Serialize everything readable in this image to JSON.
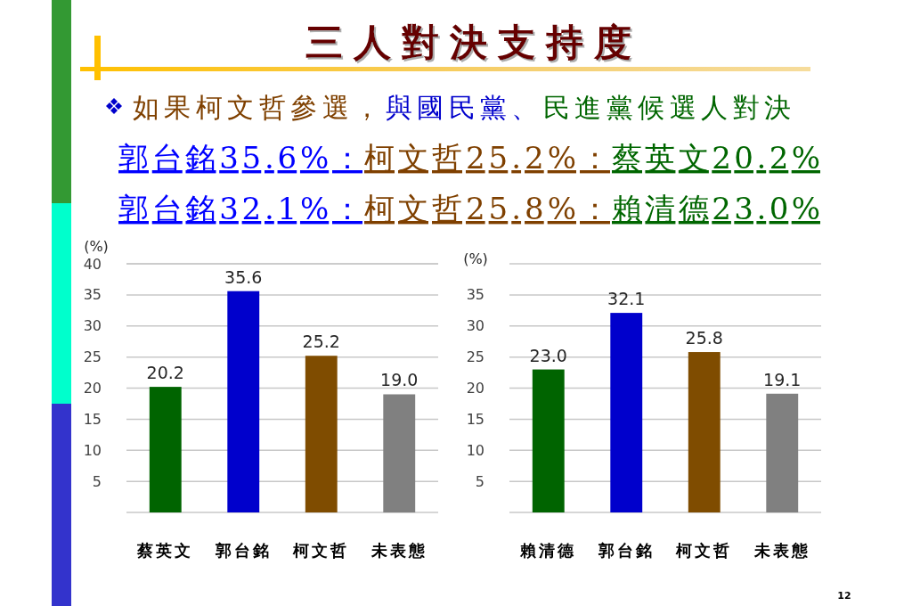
{
  "chart_data": [
    {
      "type": "bar",
      "title": "三人對決支持度",
      "subtitle": "如果柯文哲參選，與國民黨、民進黨候選人對決",
      "annotations": [
        "郭台銘35.6%：",
        "柯文哲25.2%：",
        "蔡英文20.2%"
      ],
      "ylabel": "(%)",
      "categories": [
        "蔡英文",
        "郭台銘",
        "柯文哲",
        "未表態"
      ],
      "values": [
        20.2,
        35.6,
        25.2,
        19.0
      ],
      "colors": [
        "#006400",
        "#0000cc",
        "#7f4c00",
        "#808080"
      ],
      "value_labels": [
        "20.2",
        "35.6",
        "25.2",
        "19.0"
      ],
      "ylim": [
        0,
        40
      ],
      "yticks": [
        5,
        10,
        15,
        20,
        25,
        30,
        35,
        40
      ],
      "grid": "y"
    },
    {
      "type": "bar",
      "annotations": [
        "郭台銘32.1%：",
        "柯文哲25.8%：",
        "賴清德23.0%",
        "12"
      ],
      "ylabel": "(%)",
      "categories": [
        "賴清德",
        "郭台銘",
        "柯文哲",
        "未表態"
      ],
      "values": [
        23.0,
        32.1,
        25.8,
        19.1
      ],
      "colors": [
        "#006400",
        "#0000cc",
        "#7f4c00",
        "#808080"
      ],
      "value_labels": [
        "23.0",
        "32.1",
        "25.8",
        "19.1"
      ],
      "ylim": [
        0,
        40
      ],
      "yticks": [
        5,
        10,
        15,
        20,
        25,
        30,
        35
      ],
      "grid": "y"
    }
  ]
}
